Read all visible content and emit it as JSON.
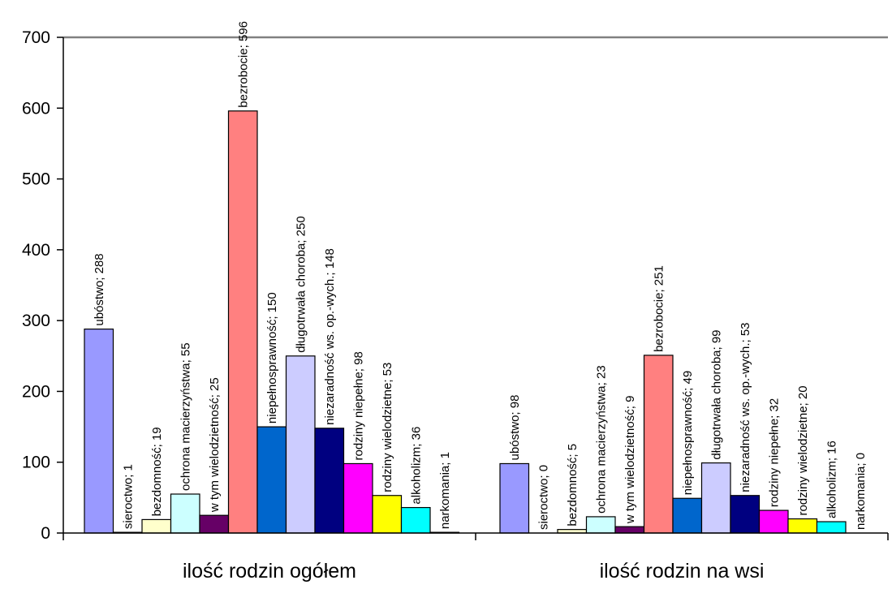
{
  "chart_data": {
    "type": "bar",
    "categories": [
      "ilość rodzin ogółem",
      "ilość rodzin na wsi"
    ],
    "ylim": [
      0,
      700
    ],
    "yticks": [
      0,
      100,
      200,
      300,
      400,
      500,
      600,
      700
    ],
    "ytick_labels": [
      "0",
      "100",
      "200",
      "300",
      "400",
      "500",
      "600",
      "700"
    ],
    "grid": {
      "horizontal": "top-only",
      "vertical": false
    },
    "legend": "none",
    "series": [
      {
        "name": "ubóstwo",
        "color": "#9999ff",
        "values": [
          288,
          98
        ],
        "labels": [
          "ubóstwo; 288",
          "ubóstwo; 98"
        ]
      },
      {
        "name": "sieroctwo",
        "color": "#993366",
        "values": [
          1,
          0
        ],
        "labels": [
          "sieroctwo; 1",
          "sieroctwo; 0"
        ]
      },
      {
        "name": "bezdomność",
        "color": "#ffffcc",
        "values": [
          19,
          5
        ],
        "labels": [
          "bezdomność; 19",
          "bezdomność; 5"
        ]
      },
      {
        "name": "ochrona macierzyństwa",
        "color": "#ccffff",
        "values": [
          55,
          23
        ],
        "labels": [
          "ochrona macierzyństwa; 55",
          "ochrona macierzyństwa; 23"
        ]
      },
      {
        "name": "w tym wielodzietność",
        "color": "#660066",
        "values": [
          25,
          9
        ],
        "labels": [
          "w tym wielodzietność; 25",
          "w tym wielodzietność; 9"
        ]
      },
      {
        "name": "bezrobocie",
        "color": "#ff8080",
        "values": [
          596,
          251
        ],
        "labels": [
          "bezrobocie; 596",
          "bezrobocie; 251"
        ]
      },
      {
        "name": "niepełnosprawność",
        "color": "#0066cc",
        "values": [
          150,
          49
        ],
        "labels": [
          "niepełnosprawność; 150",
          "niepełnosprawność; 49"
        ]
      },
      {
        "name": "długotrwała choroba",
        "color": "#ccccff",
        "values": [
          250,
          99
        ],
        "labels": [
          "długotrwała choroba; 250",
          "długotrwała choroba; 99"
        ]
      },
      {
        "name": "niezaradność ws. op.-wych.",
        "color": "#000080",
        "values": [
          148,
          53
        ],
        "labels": [
          "niezaradność ws. op.-wych.; 148",
          "niezaradność ws. op.-wych.; 53"
        ]
      },
      {
        "name": "rodziny niepełne",
        "color": "#ff00ff",
        "values": [
          98,
          32
        ],
        "labels": [
          "rodziny niepełne; 98",
          "rodziny niepełne; 32"
        ]
      },
      {
        "name": "rodziny wielodzietne",
        "color": "#ffff00",
        "values": [
          53,
          20
        ],
        "labels": [
          "rodziny wielodzietne; 53",
          "rodziny wielodzietne; 20"
        ]
      },
      {
        "name": "alkoholizm",
        "color": "#00ffff",
        "values": [
          36,
          16
        ],
        "labels": [
          "alkoholizm; 36",
          "alkoholizm; 16"
        ]
      },
      {
        "name": "narkomania",
        "color": "#800080",
        "values": [
          1,
          0
        ],
        "labels": [
          "narkomania; 1",
          "narkomania; 0"
        ]
      }
    ]
  }
}
